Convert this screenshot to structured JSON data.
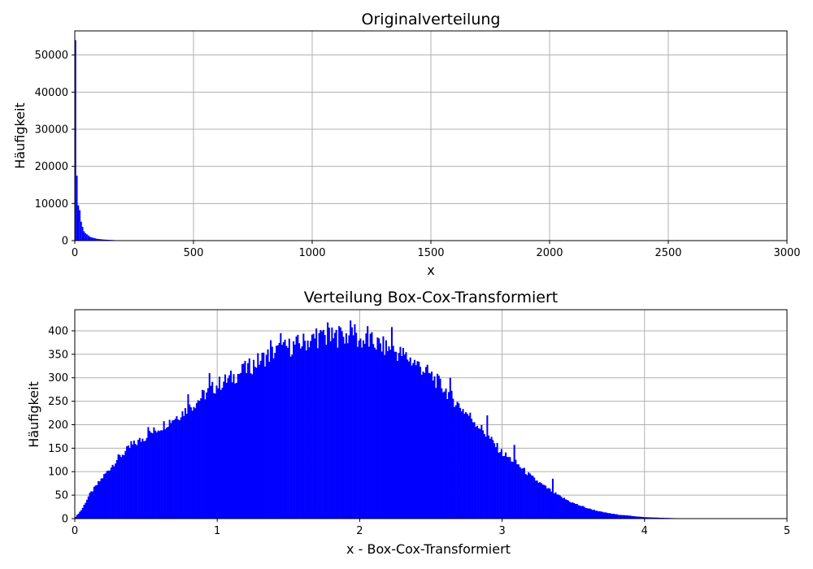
{
  "chart_data": [
    {
      "type": "bar",
      "title": "Originalverteilung",
      "xlabel": "x",
      "ylabel": "Häufigkeit",
      "xlim": [
        0,
        3000
      ],
      "ylim": [
        0,
        56500
      ],
      "xticks": [
        0,
        500,
        1000,
        1500,
        2000,
        2500,
        3000
      ],
      "yticks": [
        0,
        10000,
        20000,
        30000,
        40000,
        50000
      ],
      "grid": true,
      "color": "#0000ff",
      "bin_width": 6,
      "bins": [
        [
          0,
          54000
        ],
        [
          6,
          17500
        ],
        [
          12,
          9500
        ],
        [
          18,
          8200
        ],
        [
          24,
          5100
        ],
        [
          30,
          3700
        ],
        [
          36,
          2500
        ],
        [
          42,
          2000
        ],
        [
          48,
          1700
        ],
        [
          54,
          1400
        ],
        [
          60,
          1100
        ],
        [
          66,
          900
        ],
        [
          72,
          800
        ],
        [
          78,
          700
        ],
        [
          84,
          600
        ],
        [
          90,
          500
        ],
        [
          96,
          450
        ],
        [
          102,
          400
        ],
        [
          108,
          360
        ],
        [
          114,
          320
        ],
        [
          120,
          290
        ],
        [
          126,
          260
        ],
        [
          132,
          240
        ],
        [
          138,
          220
        ],
        [
          144,
          200
        ],
        [
          150,
          180
        ],
        [
          156,
          160
        ],
        [
          162,
          140
        ]
      ]
    },
    {
      "type": "bar",
      "title": "Verteilung Box-Cox-Transformiert",
      "xlabel": "x - Box-Cox-Transformiert",
      "ylabel": "Häufigkeit",
      "xlim": [
        0,
        5
      ],
      "ylim": [
        0,
        445
      ],
      "xticks": [
        0,
        1,
        2,
        3,
        4,
        5
      ],
      "yticks": [
        0,
        50,
        100,
        150,
        200,
        250,
        300,
        350,
        400
      ],
      "grid": true,
      "color": "#0000ff",
      "bin_width": 0.01,
      "density_points": [
        [
          0.0,
          2
        ],
        [
          0.05,
          20
        ],
        [
          0.1,
          50
        ],
        [
          0.2,
          90
        ],
        [
          0.3,
          128
        ],
        [
          0.4,
          155
        ],
        [
          0.5,
          175
        ],
        [
          0.6,
          195
        ],
        [
          0.7,
          215
        ],
        [
          0.8,
          235
        ],
        [
          0.9,
          262
        ],
        [
          1.0,
          285
        ],
        [
          1.1,
          300
        ],
        [
          1.2,
          318
        ],
        [
          1.3,
          338
        ],
        [
          1.4,
          355
        ],
        [
          1.5,
          365
        ],
        [
          1.6,
          375
        ],
        [
          1.7,
          385
        ],
        [
          1.8,
          385
        ],
        [
          1.9,
          390
        ],
        [
          2.0,
          380
        ],
        [
          2.1,
          375
        ],
        [
          2.2,
          362
        ],
        [
          2.3,
          350
        ],
        [
          2.4,
          330
        ],
        [
          2.5,
          305
        ],
        [
          2.6,
          275
        ],
        [
          2.7,
          240
        ],
        [
          2.8,
          210
        ],
        [
          2.9,
          175
        ],
        [
          3.0,
          140
        ],
        [
          3.1,
          118
        ],
        [
          3.2,
          90
        ],
        [
          3.3,
          68
        ],
        [
          3.4,
          48
        ],
        [
          3.5,
          33
        ],
        [
          3.6,
          22
        ],
        [
          3.7,
          14
        ],
        [
          3.8,
          9
        ],
        [
          3.9,
          6
        ],
        [
          4.0,
          3
        ],
        [
          4.1,
          2
        ],
        [
          4.2,
          1
        ],
        [
          4.3,
          0.6
        ],
        [
          4.5,
          0.3
        ],
        [
          5.0,
          0
        ]
      ],
      "visible_peaks": [
        [
          0.39,
          165
        ],
        [
          0.51,
          195
        ],
        [
          0.79,
          265
        ],
        [
          0.94,
          310
        ],
        [
          1.18,
          330
        ],
        [
          1.37,
          380
        ],
        [
          1.44,
          395
        ],
        [
          1.69,
          405
        ],
        [
          1.74,
          402
        ],
        [
          1.77,
          418
        ],
        [
          1.85,
          410
        ],
        [
          1.93,
          422
        ],
        [
          1.96,
          414
        ],
        [
          2.05,
          410
        ],
        [
          2.22,
          408
        ],
        [
          2.63,
          300
        ],
        [
          2.89,
          220
        ],
        [
          3.08,
          157
        ],
        [
          3.35,
          85
        ]
      ]
    }
  ]
}
